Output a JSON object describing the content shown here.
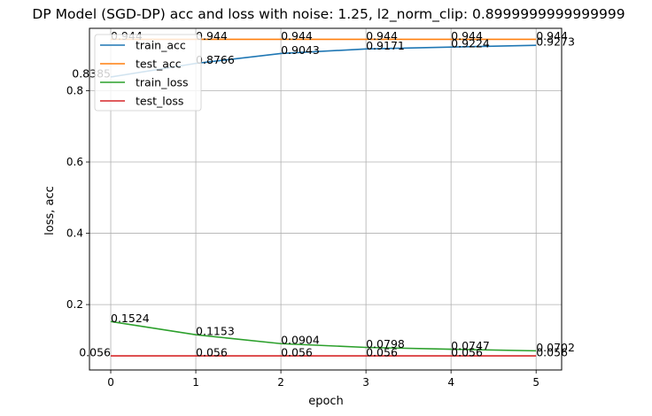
{
  "chart_data": {
    "type": "line",
    "title": "DP Model (SGD-DP) acc and loss with noise: 1.25, l2_norm_clip: 0.8999999999999999",
    "xlabel": "epoch",
    "ylabel": "loss, acc",
    "x": [
      0,
      1,
      2,
      3,
      4,
      5
    ],
    "x_ticks": [
      "0",
      "1",
      "2",
      "3",
      "4",
      "5"
    ],
    "y_ticks": [
      "0.2",
      "0.4",
      "0.6",
      "0.8"
    ],
    "y_tick_values": [
      0.2,
      0.4,
      0.6,
      0.8
    ],
    "xlim": [
      -0.25,
      5.3
    ],
    "ylim": [
      0.0165,
      0.975
    ],
    "grid": true,
    "legend_position": "top-left",
    "series": [
      {
        "name": "train_acc",
        "color": "#1f77b4",
        "values": [
          0.8385,
          0.8766,
          0.9043,
          0.9171,
          0.9224,
          0.9273
        ],
        "labels": [
          "0.8385",
          "0.8766",
          "0.9043",
          "0.9171",
          "0.9224",
          "0.9273"
        ]
      },
      {
        "name": "test_acc",
        "color": "#ff7f0e",
        "values": [
          0.944,
          0.944,
          0.944,
          0.944,
          0.944,
          0.944
        ],
        "labels": [
          "0.944",
          "0.944",
          "0.944",
          "0.944",
          "0.944",
          "0.944"
        ]
      },
      {
        "name": "train_loss",
        "color": "#2ca02c",
        "values": [
          0.1524,
          0.1153,
          0.0904,
          0.0798,
          0.0747,
          0.0702
        ],
        "labels": [
          "0.1524",
          "0.1153",
          "0.0904",
          "0.0798",
          "0.0747",
          "0.0702"
        ]
      },
      {
        "name": "test_loss",
        "color": "#d62728",
        "values": [
          0.056,
          0.056,
          0.056,
          0.056,
          0.056,
          0.056
        ],
        "labels": [
          "0.056",
          "0.056",
          "0.056",
          "0.056",
          "0.056",
          "0.056"
        ]
      }
    ]
  }
}
